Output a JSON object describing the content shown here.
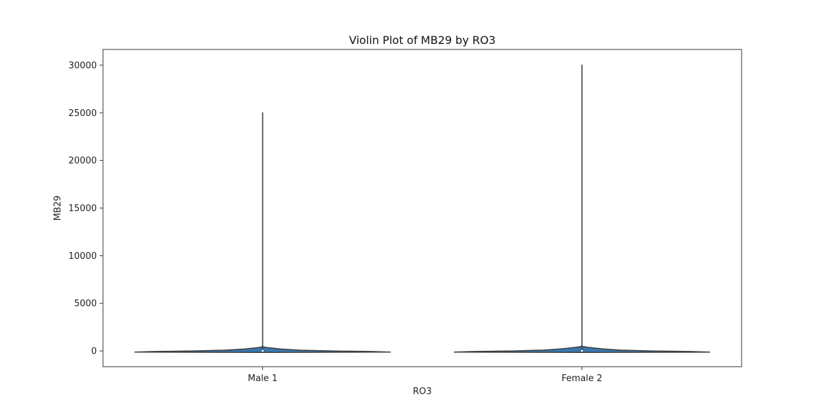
{
  "chart_data": {
    "type": "violin",
    "title": "Violin Plot of MB29 by RO3",
    "xlabel": "RO3",
    "ylabel": "MB29",
    "categories": [
      "Male 1",
      "Female 2"
    ],
    "ylim": [
      -1650,
      31650
    ],
    "yticks": [
      0,
      5000,
      10000,
      15000,
      20000,
      25000,
      30000
    ],
    "ytick_labels": [
      "0",
      "5000",
      "10000",
      "15000",
      "20000",
      "25000",
      "30000"
    ],
    "grid": false,
    "violin_color": "#3a78b0",
    "violins": [
      {
        "category": "Male 1",
        "min": 0,
        "max": 25050,
        "q1": 0,
        "median": 20,
        "q3": 150,
        "density": [
          {
            "y": -150,
            "w": 0.0
          },
          {
            "y": -120,
            "w": 1.0
          },
          {
            "y": -60,
            "w": 0.85
          },
          {
            "y": 0,
            "w": 0.55
          },
          {
            "y": 80,
            "w": 0.3
          },
          {
            "y": 200,
            "w": 0.14
          },
          {
            "y": 350,
            "w": 0.04
          },
          {
            "y": 450,
            "w": 0.0
          }
        ]
      },
      {
        "category": "Female 2",
        "min": 0,
        "max": 30050,
        "q1": 0,
        "median": 30,
        "q3": 200,
        "density": [
          {
            "y": -150,
            "w": 0.0
          },
          {
            "y": -120,
            "w": 1.0
          },
          {
            "y": -60,
            "w": 0.85
          },
          {
            "y": 0,
            "w": 0.55
          },
          {
            "y": 90,
            "w": 0.3
          },
          {
            "y": 230,
            "w": 0.15
          },
          {
            "y": 400,
            "w": 0.04
          },
          {
            "y": 500,
            "w": 0.0
          }
        ]
      }
    ]
  }
}
